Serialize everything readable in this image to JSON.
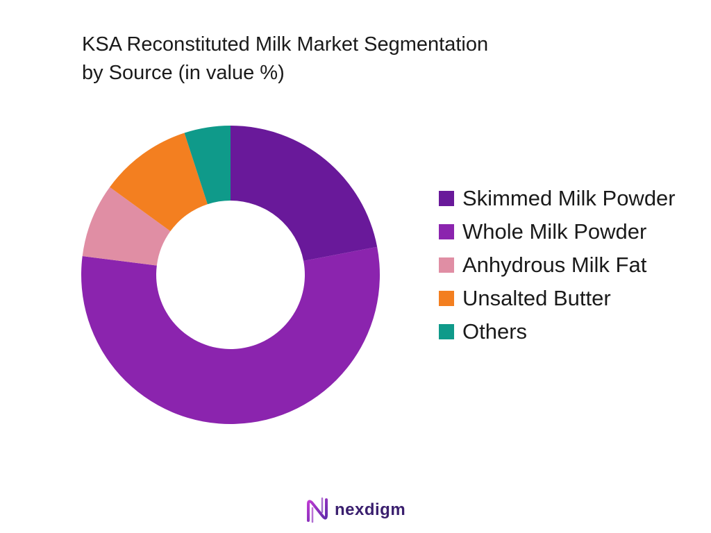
{
  "chart_data": {
    "type": "pie",
    "variant": "donut",
    "title_lines": [
      "KSA Reconstituted Milk Market Segmentation",
      "by Source (in value %)"
    ],
    "categories": [
      "Skimmed Milk Powder",
      "Whole Milk Powder",
      "Anhydrous Milk Fat",
      "Unsalted Butter",
      "Others"
    ],
    "values": [
      22,
      55,
      8,
      10,
      5
    ],
    "colors": [
      "#69199a",
      "#8b24ae",
      "#e08ea4",
      "#f37f20",
      "#0f9a8a"
    ],
    "legend_position": "right"
  },
  "footer": {
    "brand": "nexdigm",
    "logo_icon": "nexdigm-logo-icon"
  }
}
